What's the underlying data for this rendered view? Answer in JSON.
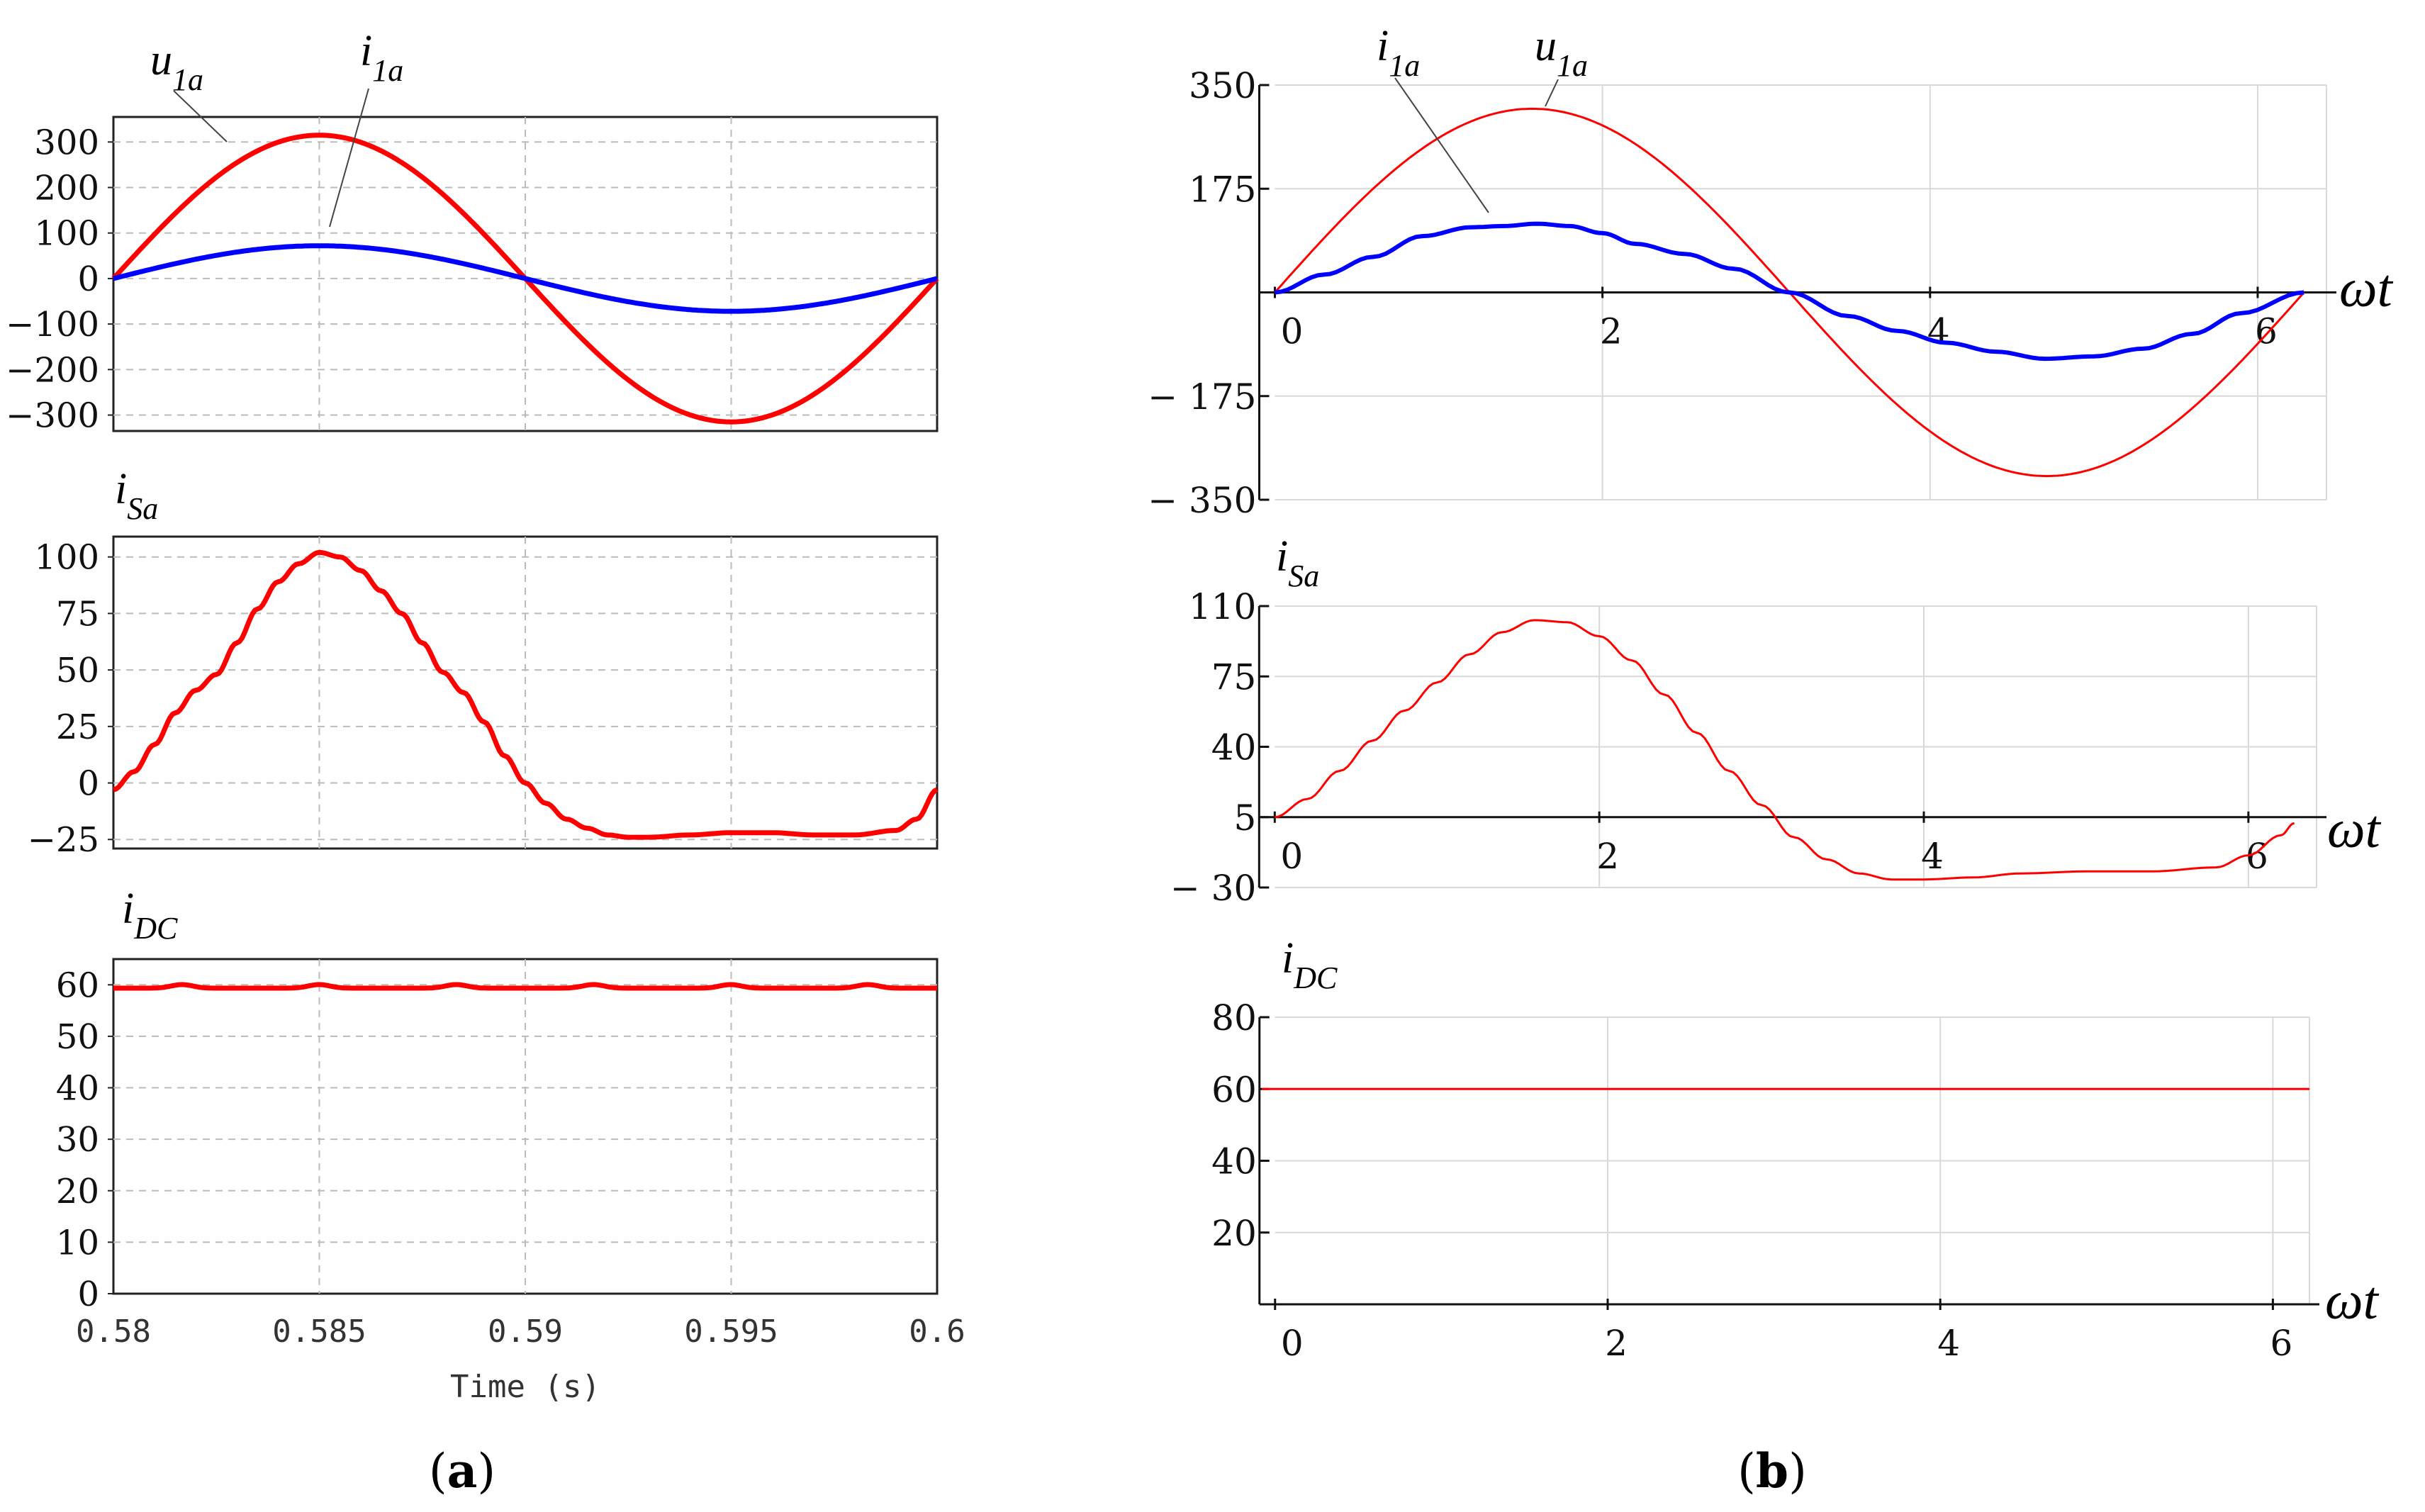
{
  "chart_data": [
    {
      "id": "a_top",
      "panel": "a",
      "type": "line",
      "ylim": [
        -335,
        355
      ],
      "xlim": [
        0.58,
        0.6
      ],
      "yticks": [
        300,
        200,
        100,
        0,
        -100,
        -200,
        -300
      ],
      "xticks": [
        0.58,
        0.585,
        0.59,
        0.595,
        0.6
      ],
      "ytick_labels": [
        "300",
        "200",
        "100",
        "0",
        "−100",
        "−200",
        "−300"
      ],
      "series": [
        {
          "name": "u_1a",
          "color": "#ff0000",
          "amplitude": 315,
          "kind": "sine"
        },
        {
          "name": "i_1a",
          "color": "#0000ff",
          "amplitude": 72,
          "kind": "sine"
        }
      ],
      "annotations": [
        {
          "base": "u",
          "sub": "1a"
        },
        {
          "base": "i",
          "sub": "1a"
        }
      ]
    },
    {
      "id": "a_mid",
      "panel": "a",
      "type": "line",
      "ylim": [
        -29,
        109
      ],
      "xlim": [
        0.58,
        0.6
      ],
      "yticks": [
        100,
        75,
        50,
        25,
        0,
        -25
      ],
      "ytick_labels": [
        "100",
        "75",
        "50",
        "25",
        "0",
        "−25"
      ],
      "title": {
        "base": "i",
        "sub": "Sa"
      },
      "series": [
        {
          "name": "i_Sa",
          "color": "#ff0000",
          "x": [
            0.58,
            0.5805,
            0.581,
            0.5815,
            0.582,
            0.5825,
            0.583,
            0.5835,
            0.584,
            0.5845,
            0.585,
            0.5855,
            0.586,
            0.5865,
            0.587,
            0.5875,
            0.588,
            0.5885,
            0.589,
            0.5895,
            0.59,
            0.5905,
            0.591,
            0.5915,
            0.592,
            0.5925,
            0.593,
            0.594,
            0.595,
            0.596,
            0.597,
            0.598,
            0.599,
            0.5995,
            0.6
          ],
          "y": [
            -3,
            5,
            17,
            31,
            41,
            48,
            62,
            77,
            89,
            97,
            102,
            100,
            94,
            85,
            75,
            62,
            49,
            40,
            27,
            12,
            0,
            -9,
            -16,
            -20,
            -23,
            -24,
            -24,
            -23,
            -22,
            -22,
            -23,
            -23,
            -21,
            -16,
            -3
          ]
        }
      ]
    },
    {
      "id": "a_bot",
      "panel": "a",
      "type": "line",
      "ylim": [
        0,
        65
      ],
      "xlim": [
        0.58,
        0.6
      ],
      "yticks": [
        60,
        50,
        40,
        30,
        20,
        10,
        0
      ],
      "ytick_labels": [
        "60",
        "50",
        "40",
        "30",
        "20",
        "10",
        "0"
      ],
      "xticks": [
        0.58,
        0.585,
        0.59,
        0.595,
        0.6
      ],
      "xtick_labels": [
        "0.58",
        "0.585",
        "0.59",
        "0.595",
        "0.6"
      ],
      "xlabel": "Time (s)",
      "title": {
        "base": "i",
        "sub": "DC"
      },
      "series": [
        {
          "name": "i_DC",
          "color": "#ff0000",
          "mean": 59.5,
          "ripple": 0.7,
          "ripple_period": 0.00333
        }
      ]
    },
    {
      "id": "b_top",
      "panel": "b",
      "type": "line",
      "ylim": [
        -350,
        350
      ],
      "xlim": [
        -0.08,
        6.42
      ],
      "yticks": [
        350,
        175,
        -175,
        -350
      ],
      "ytick_labels": [
        "350",
        "175",
        "− 175",
        "− 350"
      ],
      "xticks": [
        0,
        2,
        4,
        6
      ],
      "xtick_labels": [
        "0",
        "2",
        "4",
        "6"
      ],
      "xaxis_label": "ωt",
      "series": [
        {
          "name": "u_1a",
          "color": "#ff0000",
          "amplitude": 310,
          "kind": "sine"
        },
        {
          "name": "i_1a",
          "color": "#0000ff",
          "x": [
            0,
            0.3,
            0.6,
            0.9,
            1.2,
            1.4,
            1.6,
            1.8,
            2.0,
            2.2,
            2.5,
            2.8,
            3.14,
            3.5,
            3.8,
            4.1,
            4.4,
            4.7,
            5.0,
            5.3,
            5.6,
            5.9,
            6.283
          ],
          "y": [
            0,
            30,
            60,
            95,
            110,
            112,
            116,
            112,
            100,
            82,
            65,
            40,
            0,
            -40,
            -65,
            -85,
            -100,
            -112,
            -108,
            -95,
            -70,
            -35,
            0
          ]
        }
      ],
      "annotations": [
        {
          "base": "i",
          "sub": "1a"
        },
        {
          "base": "u",
          "sub": "1a"
        }
      ]
    },
    {
      "id": "b_mid",
      "panel": "b",
      "type": "line",
      "ylim": [
        -30,
        110
      ],
      "xlim": [
        -0.08,
        6.42
      ],
      "yticks": [
        110,
        75,
        40,
        5,
        -30
      ],
      "ytick_labels": [
        "110",
        "75",
        "40",
        "5",
        "− 30"
      ],
      "xticks": [
        0,
        2,
        4,
        6
      ],
      "xtick_labels": [
        "0",
        "2",
        "4",
        "6"
      ],
      "xaxis_label": "ωt",
      "title": {
        "base": "i",
        "sub": "Sa"
      },
      "series": [
        {
          "name": "i_Sa",
          "color": "#ff0000",
          "x": [
            0,
            0.2,
            0.4,
            0.6,
            0.8,
            1.0,
            1.2,
            1.4,
            1.6,
            1.8,
            2.0,
            2.2,
            2.4,
            2.6,
            2.8,
            3.0,
            3.2,
            3.4,
            3.6,
            3.8,
            4.0,
            4.3,
            4.6,
            5.0,
            5.4,
            5.8,
            6.0,
            6.2,
            6.283
          ],
          "y": [
            5,
            14,
            28,
            43,
            58,
            72,
            86,
            97,
            103,
            102,
            95,
            83,
            66,
            47,
            28,
            11,
            -5,
            -16,
            -23,
            -26,
            -26,
            -25,
            -23,
            -22,
            -22,
            -20,
            -14,
            -4,
            2
          ]
        }
      ]
    },
    {
      "id": "b_bot",
      "panel": "b",
      "type": "line",
      "ylim": [
        0,
        80
      ],
      "xlim": [
        -0.08,
        6.22
      ],
      "yticks": [
        80,
        60,
        40,
        20
      ],
      "ytick_labels": [
        "80",
        "60",
        "40",
        "20"
      ],
      "xticks": [
        0,
        2,
        4,
        6
      ],
      "xtick_labels": [
        "0",
        "2",
        "4",
        "6"
      ],
      "xaxis_label": "ωt",
      "title": {
        "base": "i",
        "sub": "DC"
      },
      "series": [
        {
          "name": "i_DC",
          "color": "#ff0000",
          "x": [
            -0.08,
            6.22
          ],
          "y": [
            60,
            60
          ]
        }
      ]
    }
  ],
  "captions": {
    "a": {
      "open": "(",
      "letter": "a",
      "close": ")"
    },
    "b": {
      "open": "(",
      "letter": "b",
      "close": ")"
    }
  }
}
